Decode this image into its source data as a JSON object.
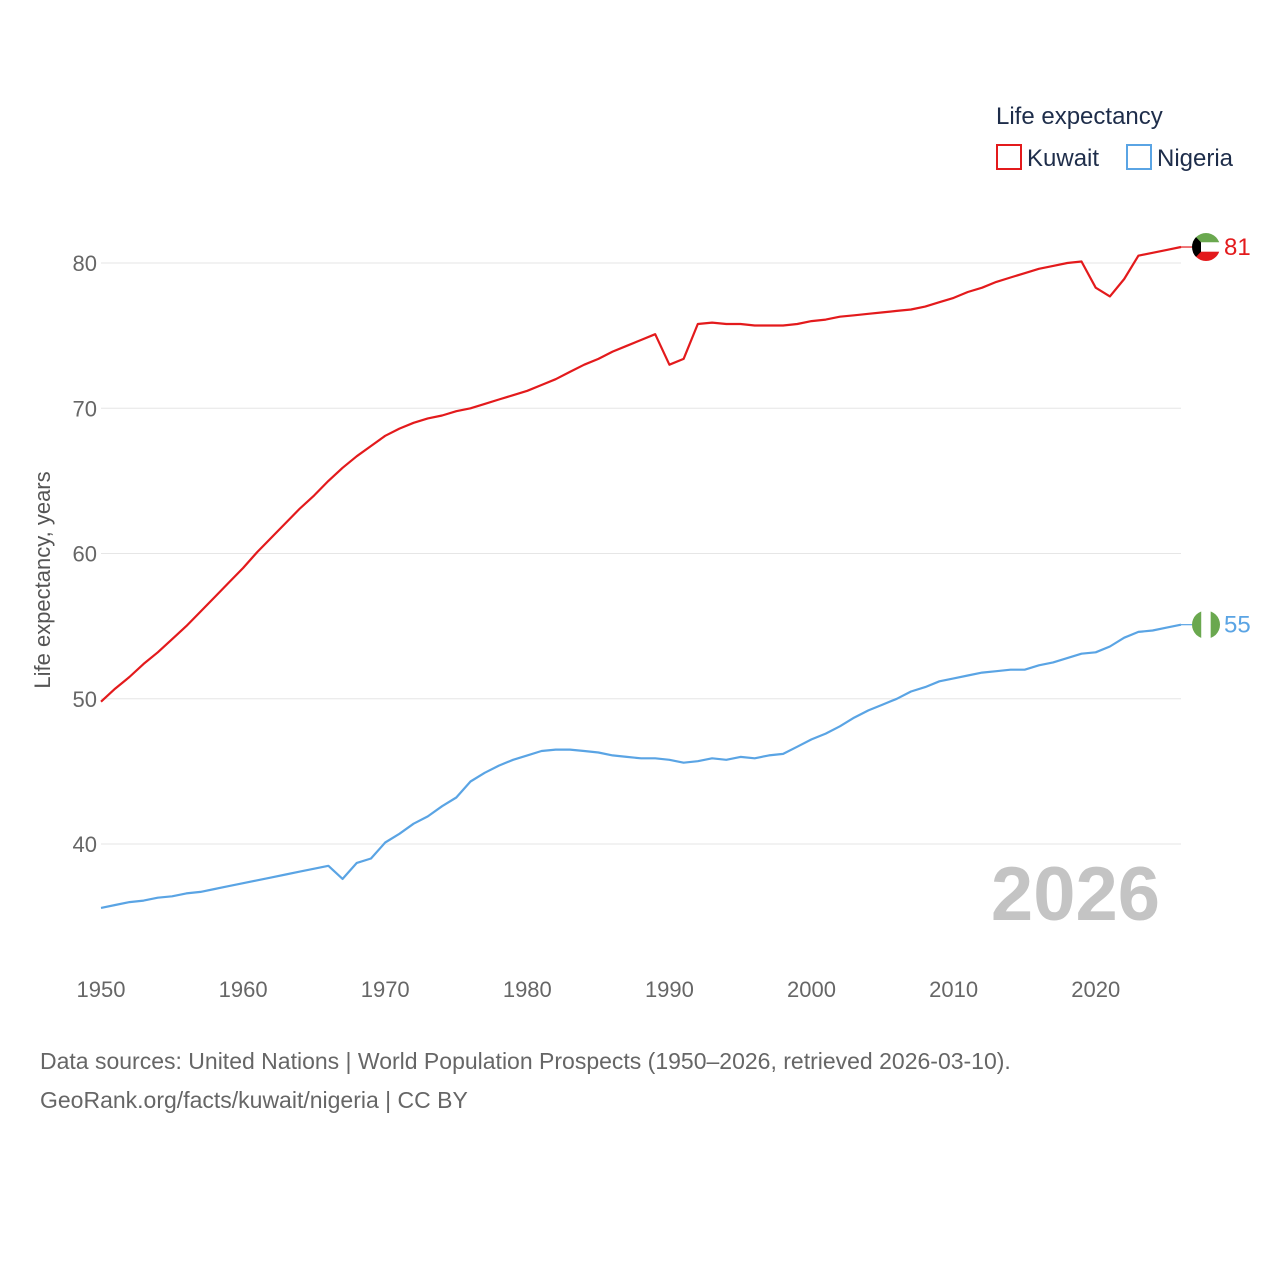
{
  "chart_data": {
    "type": "line",
    "title": "",
    "legend_title": "Life expectancy",
    "ylabel": "Life expectancy, years",
    "xlabel": "",
    "xlim": [
      1950,
      2026
    ],
    "ylim": [
      35,
      84
    ],
    "x_ticks": [
      1950,
      1960,
      1970,
      1980,
      1990,
      2000,
      2010,
      2020
    ],
    "y_ticks": [
      40,
      50,
      60,
      70,
      80
    ],
    "year_label": "2026",
    "x": [
      1950,
      1951,
      1952,
      1953,
      1954,
      1955,
      1956,
      1957,
      1958,
      1959,
      1960,
      1961,
      1962,
      1963,
      1964,
      1965,
      1966,
      1967,
      1968,
      1969,
      1970,
      1971,
      1972,
      1973,
      1974,
      1975,
      1976,
      1977,
      1978,
      1979,
      1980,
      1981,
      1982,
      1983,
      1984,
      1985,
      1986,
      1987,
      1988,
      1989,
      1990,
      1991,
      1992,
      1993,
      1994,
      1995,
      1996,
      1997,
      1998,
      1999,
      2000,
      2001,
      2002,
      2003,
      2004,
      2005,
      2006,
      2007,
      2008,
      2009,
      2010,
      2011,
      2012,
      2013,
      2014,
      2015,
      2016,
      2017,
      2018,
      2019,
      2020,
      2021,
      2022,
      2023,
      2024,
      2025,
      2026
    ],
    "series": [
      {
        "name": "Kuwait",
        "color": "#e31a1c",
        "end_label": "81",
        "values": [
          49.8,
          50.7,
          51.5,
          52.4,
          53.2,
          54.1,
          55.0,
          56.0,
          57.0,
          58.0,
          59.0,
          60.1,
          61.1,
          62.1,
          63.1,
          64.0,
          65.0,
          65.9,
          66.7,
          67.4,
          68.1,
          68.6,
          69.0,
          69.3,
          69.5,
          69.8,
          70.0,
          70.3,
          70.6,
          70.9,
          71.2,
          71.6,
          72.0,
          72.5,
          73.0,
          73.4,
          73.9,
          74.3,
          74.7,
          75.1,
          73.0,
          73.4,
          75.8,
          75.9,
          75.8,
          75.8,
          75.7,
          75.7,
          75.7,
          75.8,
          76.0,
          76.1,
          76.3,
          76.4,
          76.5,
          76.6,
          76.7,
          76.8,
          77.0,
          77.3,
          77.6,
          78.0,
          78.3,
          78.7,
          79.0,
          79.3,
          79.6,
          79.8,
          80.0,
          80.1,
          78.3,
          77.7,
          78.9,
          80.5,
          80.7,
          80.9,
          81.1
        ]
      },
      {
        "name": "Nigeria",
        "color": "#5aa4e4",
        "end_label": "55",
        "values": [
          35.6,
          35.8,
          36.0,
          36.1,
          36.3,
          36.4,
          36.6,
          36.7,
          36.9,
          37.1,
          37.3,
          37.5,
          37.7,
          37.9,
          38.1,
          38.3,
          38.5,
          37.6,
          38.7,
          39.0,
          40.1,
          40.7,
          41.4,
          41.9,
          42.6,
          43.2,
          44.3,
          44.9,
          45.4,
          45.8,
          46.1,
          46.4,
          46.5,
          46.5,
          46.4,
          46.3,
          46.1,
          46.0,
          45.9,
          45.9,
          45.8,
          45.6,
          45.7,
          45.9,
          45.8,
          46.0,
          45.9,
          46.1,
          46.2,
          46.7,
          47.2,
          47.6,
          48.1,
          48.7,
          49.2,
          49.6,
          50.0,
          50.5,
          50.8,
          51.2,
          51.4,
          51.6,
          51.8,
          51.9,
          52.0,
          52.0,
          52.3,
          52.5,
          52.8,
          53.1,
          53.2,
          53.6,
          54.2,
          54.6,
          54.7,
          54.9,
          55.1
        ]
      }
    ]
  },
  "source": {
    "line1": "Data sources: United Nations | World Population Prospects (1950–2026, retrieved 2026-03-10).",
    "line2": "GeoRank.org/facts/kuwait/nigeria | CC BY"
  },
  "flags": {
    "kuwait": [
      "#6aa84f",
      "#ffffff",
      "#e31a1c",
      "#000000"
    ],
    "nigeria": [
      "#6aa84f",
      "#ffffff",
      "#6aa84f"
    ]
  }
}
